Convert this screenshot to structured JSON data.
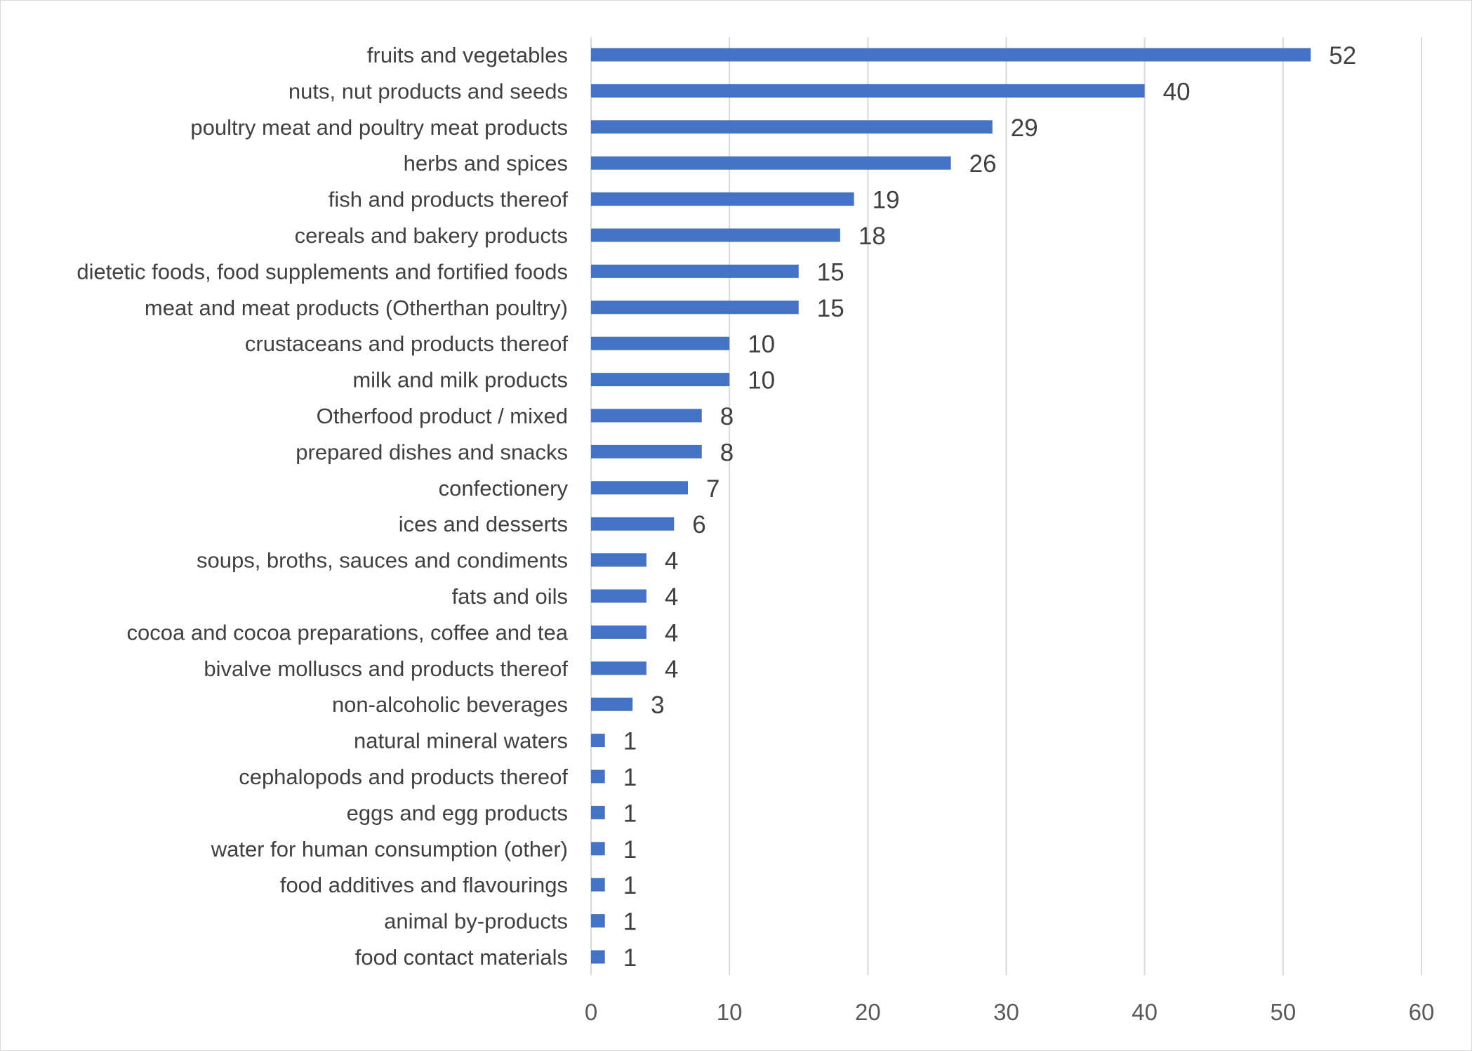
{
  "chart_data": {
    "type": "bar",
    "orientation": "horizontal",
    "title": "",
    "xlabel": "",
    "ylabel": "",
    "xlim": [
      0,
      60
    ],
    "ticks": [
      "0",
      "10",
      "20",
      "30",
      "40",
      "50",
      "60"
    ],
    "grid": true,
    "legend": "none",
    "bar_color": "#4472c4",
    "categories": [
      "fruits and vegetables",
      "nuts, nut products and seeds",
      "poultry meat and poultry meat products",
      "herbs and spices",
      "fish and products thereof",
      "cereals and bakery products",
      "dietetic foods, food supplements and fortified foods",
      "meat and meat products (Otherthan poultry)",
      "crustaceans and products thereof",
      "milk and milk products",
      "Otherfood product / mixed",
      "prepared dishes and snacks",
      "confectionery",
      "ices and desserts",
      "soups, broths, sauces and condiments",
      "fats and oils",
      "cocoa and cocoa preparations, coffee and tea",
      "bivalve molluscs and products thereof",
      "non-alcoholic beverages",
      "natural mineral waters",
      "cephalopods and products thereof",
      "eggs and egg products",
      "water for human consumption (other)",
      "food additives and flavourings",
      "animal by-products",
      "food contact materials"
    ],
    "values": [
      52,
      40,
      29,
      26,
      19,
      18,
      15,
      15,
      10,
      10,
      8,
      8,
      7,
      6,
      4,
      4,
      4,
      4,
      3,
      1,
      1,
      1,
      1,
      1,
      1,
      1
    ]
  }
}
